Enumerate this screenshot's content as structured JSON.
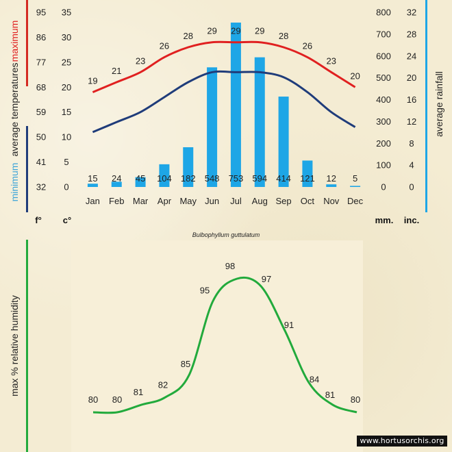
{
  "colors": {
    "max_line": "#e02020",
    "min_line": "#1f3c7a",
    "rain_bar": "#1ea6e6",
    "humidity_line": "#22aa3c",
    "max_bar": "#d42a22",
    "min_bar": "#1f3c7a",
    "rain_axis_bar": "#1ea6e6",
    "humidity_bar": "#22aa3c"
  },
  "labels": {
    "maximum": "maximum",
    "average_temperatures": "average  temperatures",
    "minimum": "minimum",
    "average_rainfall": "average rainfall",
    "humidity_title": "max  %  relative humidity",
    "unit_f": "f°",
    "unit_c": "c°",
    "unit_mm": "mm.",
    "unit_inc": "inc.",
    "species": "Bulbophyllum guttulatum",
    "watermark": "www.hortusorchis.org"
  },
  "axes": {
    "fahrenheit_ticks": [
      "95",
      "86",
      "77",
      "68",
      "59",
      "50",
      "41",
      "32"
    ],
    "celsius_ticks": [
      "35",
      "30",
      "25",
      "20",
      "15",
      "10",
      "5",
      "0"
    ],
    "mm_ticks": [
      "800",
      "700",
      "600",
      "500",
      "400",
      "300",
      "200",
      "100",
      "0"
    ],
    "inch_ticks": [
      "32",
      "28",
      "24",
      "20",
      "16",
      "12",
      "8",
      "4",
      "0"
    ]
  },
  "chart_data": [
    {
      "type": "bar",
      "categories": [
        "Jan",
        "Feb",
        "Mar",
        "Apr",
        "May",
        "Jun",
        "Jul",
        "Aug",
        "Sep",
        "Oct",
        "Nov",
        "Dec"
      ],
      "series": [
        {
          "name": "maximum",
          "type": "line",
          "values": [
            19,
            21,
            23,
            26,
            28,
            29,
            29,
            29,
            28,
            26,
            23,
            20
          ]
        },
        {
          "name": "minimum",
          "type": "line",
          "values": [
            11,
            13,
            15,
            18,
            21,
            23,
            23,
            23,
            22,
            19,
            15,
            12
          ]
        },
        {
          "name": "average rainfall",
          "type": "bar",
          "values": [
            15,
            24,
            45,
            104,
            182,
            548,
            753,
            594,
            414,
            121,
            12,
            5
          ]
        }
      ],
      "ylim_temp_c": [
        0,
        35
      ],
      "ylim_temp_f": [
        32,
        95
      ],
      "ylim_rain_mm": [
        0,
        800
      ],
      "ylim_rain_inch": [
        0,
        32
      ],
      "grid": false
    },
    {
      "type": "line",
      "series": [
        {
          "name": "max  %  relative humidity",
          "values": [
            80,
            80,
            81,
            82,
            85,
            95,
            98,
            97,
            91,
            84,
            81,
            80
          ]
        }
      ]
    }
  ]
}
